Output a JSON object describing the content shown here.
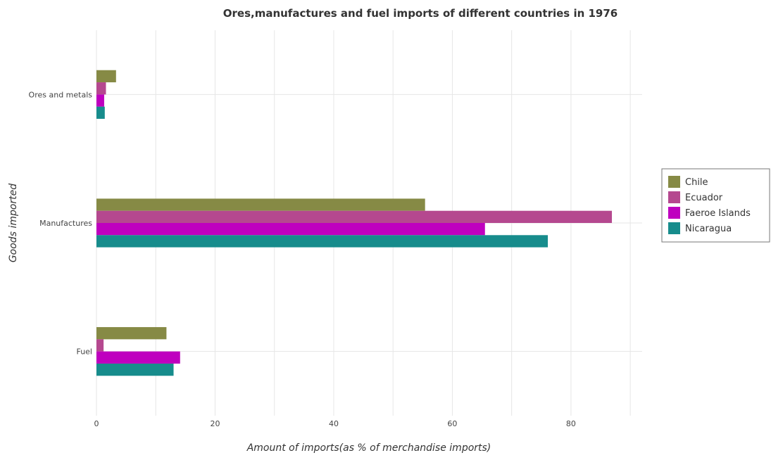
{
  "chart_data": {
    "type": "bar",
    "orientation": "horizontal",
    "title": "Ores,manufactures and fuel imports of different countries in 1976",
    "xlabel": "Amount of imports(as % of merchandise imports)",
    "ylabel": "Goods imported",
    "xlim": [
      0,
      92
    ],
    "xticks": [
      "0",
      "20",
      "40",
      "60",
      "80"
    ],
    "xtick_values": [
      0,
      20,
      40,
      60,
      80
    ],
    "categories": [
      "Ores and metals",
      "Manufactures",
      "Fuel"
    ],
    "series": [
      {
        "name": "Chile",
        "color": "#868a45",
        "values": [
          3.3,
          55.4,
          11.8
        ]
      },
      {
        "name": "Ecuador",
        "color": "#b5488f",
        "values": [
          1.6,
          86.9,
          1.2
        ]
      },
      {
        "name": "Faeroe Islands",
        "color": "#bf00bf",
        "values": [
          1.3,
          65.5,
          14.1
        ]
      },
      {
        "name": "Nicaragua",
        "color": "#178c8c",
        "values": [
          1.4,
          76.1,
          13.0
        ]
      }
    ],
    "grid": true,
    "legend_position": "right"
  }
}
